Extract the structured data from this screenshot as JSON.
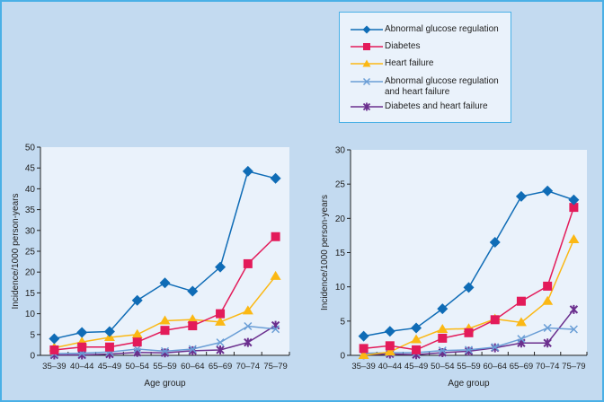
{
  "legend": {
    "items": [
      {
        "label": "Abnormal glucose regulation",
        "color": "#0f6cb6",
        "marker": "diamond"
      },
      {
        "label": "Diabetes",
        "color": "#e31b5a",
        "marker": "square"
      },
      {
        "label": "Heart failure",
        "color": "#fbb814",
        "marker": "triangle"
      },
      {
        "label": "Abnormal glucose regulation and heart failure",
        "color": "#6a9ed6",
        "marker": "x"
      },
      {
        "label": "Diabetes and heart failure",
        "color": "#6b2f8e",
        "marker": "star"
      }
    ]
  },
  "chart_data": [
    {
      "type": "line",
      "title": "",
      "xlabel": "Age group",
      "ylabel": "Incidence/1000 person-years",
      "categories": [
        "35–39",
        "40–44",
        "45–49",
        "50–54",
        "55–59",
        "60–64",
        "65–69",
        "70–74",
        "75–79"
      ],
      "ylim": [
        0,
        50
      ],
      "yticks": [
        0,
        5,
        10,
        15,
        20,
        25,
        30,
        35,
        40,
        45,
        50
      ],
      "grid": false,
      "legend_position": "top-right",
      "series": [
        {
          "name": "Abnormal glucose regulation",
          "values": [
            4.0,
            5.5,
            5.7,
            13.2,
            17.4,
            15.4,
            21.2,
            44.2,
            42.5
          ]
        },
        {
          "name": "Diabetes",
          "values": [
            1.3,
            2.0,
            2.0,
            3.2,
            6.0,
            7.1,
            10.0,
            22.0,
            28.5
          ]
        },
        {
          "name": "Heart failure",
          "values": [
            1.8,
            3.2,
            4.3,
            5.0,
            8.3,
            8.6,
            8.0,
            10.7,
            19.0
          ]
        },
        {
          "name": "Abnormal glucose regulation and heart failure",
          "values": [
            0.4,
            0.5,
            0.8,
            1.5,
            1.0,
            1.5,
            3.1,
            7.0,
            6.3
          ]
        },
        {
          "name": "Diabetes and heart failure",
          "values": [
            0.1,
            0.1,
            0.3,
            0.7,
            0.6,
            1.1,
            1.3,
            3.1,
            7.2
          ]
        }
      ]
    },
    {
      "type": "line",
      "title": "",
      "xlabel": "Age group",
      "ylabel": "Incidence/1000 person-years",
      "categories": [
        "35–39",
        "40–44",
        "45–49",
        "50–54",
        "55–59",
        "60–64",
        "65–69",
        "70–74",
        "75–79"
      ],
      "ylim": [
        0,
        30
      ],
      "yticks": [
        0,
        5,
        10,
        15,
        20,
        25,
        30
      ],
      "grid": false,
      "legend_position": "top-right",
      "series": [
        {
          "name": "Abnormal glucose regulation",
          "values": [
            2.8,
            3.5,
            4.0,
            6.8,
            9.9,
            16.5,
            23.2,
            24.0,
            22.7
          ]
        },
        {
          "name": "Diabetes",
          "values": [
            1.0,
            1.4,
            0.8,
            2.5,
            3.3,
            5.2,
            7.9,
            10.1,
            21.6
          ]
        },
        {
          "name": "Heart failure",
          "values": [
            0.0,
            0.5,
            2.3,
            3.8,
            3.9,
            5.3,
            4.8,
            7.9,
            16.9
          ]
        },
        {
          "name": "Abnormal glucose regulation and heart failure",
          "values": [
            0.3,
            0.4,
            0.4,
            0.7,
            0.8,
            1.2,
            2.4,
            4.0,
            3.8
          ]
        },
        {
          "name": "Diabetes and heart failure",
          "values": [
            0.1,
            0.2,
            0.1,
            0.4,
            0.6,
            1.1,
            1.8,
            1.8,
            6.7
          ]
        }
      ]
    }
  ]
}
